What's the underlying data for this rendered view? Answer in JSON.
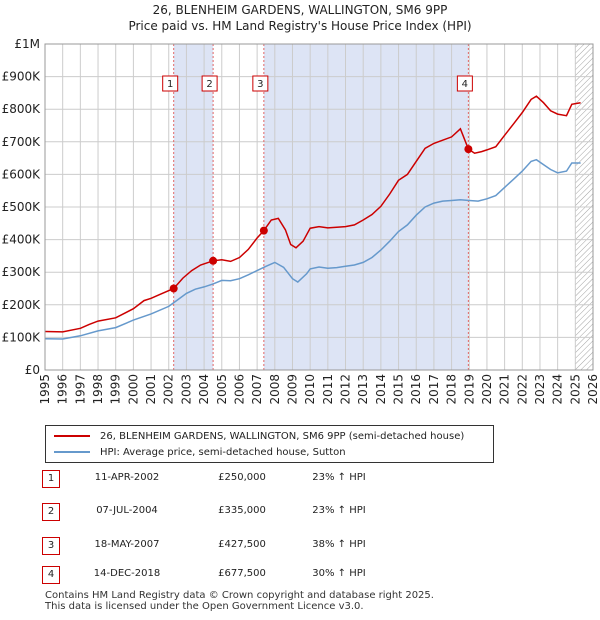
{
  "header": {
    "title": "26, BLENHEIM GARDENS, WALLINGTON, SM6 9PP",
    "subtitle": "Price paid vs. HM Land Registry's House Price Index (HPI)"
  },
  "colors": {
    "price_line": "#cc0000",
    "hpi_line": "#6699cc",
    "shade": "#dde4f5",
    "grid": "#cccccc",
    "hatch": "#999999"
  },
  "chart_data": {
    "type": "line",
    "title": "26, BLENHEIM GARDENS, WALLINGTON, SM6 9PP",
    "subtitle": "Price paid vs. HM Land Registry's House Price Index (HPI)",
    "xlabel": "",
    "ylabel": "",
    "xlim": [
      1995,
      2026
    ],
    "ylim": [
      0,
      1000000
    ],
    "x_ticks": [
      "1995",
      "1996",
      "1997",
      "1998",
      "1999",
      "2000",
      "2001",
      "2002",
      "2003",
      "2004",
      "2005",
      "2006",
      "2007",
      "2008",
      "2009",
      "2010",
      "2011",
      "2012",
      "2013",
      "2014",
      "2015",
      "2016",
      "2017",
      "2018",
      "2019",
      "2020",
      "2021",
      "2022",
      "2023",
      "2024",
      "2025",
      "2026"
    ],
    "y_ticks": [
      {
        "value": 0,
        "label": "£0"
      },
      {
        "value": 100000,
        "label": "£100K"
      },
      {
        "value": 200000,
        "label": "£200K"
      },
      {
        "value": 300000,
        "label": "£300K"
      },
      {
        "value": 400000,
        "label": "£400K"
      },
      {
        "value": 500000,
        "label": "£500K"
      },
      {
        "value": 600000,
        "label": "£600K"
      },
      {
        "value": 700000,
        "label": "£700K"
      },
      {
        "value": 800000,
        "label": "£800K"
      },
      {
        "value": 900000,
        "label": "£900K"
      },
      {
        "value": 1000000,
        "label": "£1M"
      }
    ],
    "grid": true,
    "shaded_ranges": [
      [
        2002.28,
        2004.51
      ],
      [
        2007.38,
        2018.95
      ]
    ],
    "projection_start": 2025.0,
    "series": [
      {
        "name": "26, BLENHEIM GARDENS, WALLINGTON, SM6 9PP (semi-detached house)",
        "color": "#cc0000",
        "points": [
          [
            1995.0,
            118000
          ],
          [
            1996.0,
            117000
          ],
          [
            1997.0,
            128000
          ],
          [
            1997.5,
            140000
          ],
          [
            1998.0,
            150000
          ],
          [
            1999.0,
            160000
          ],
          [
            2000.0,
            188000
          ],
          [
            2000.6,
            213000
          ],
          [
            2001.0,
            220000
          ],
          [
            2001.5,
            232000
          ],
          [
            2002.28,
            250000
          ],
          [
            2002.8,
            282000
          ],
          [
            2003.3,
            305000
          ],
          [
            2003.8,
            322000
          ],
          [
            2004.51,
            335000
          ],
          [
            2005.0,
            338000
          ],
          [
            2005.5,
            333000
          ],
          [
            2006.0,
            345000
          ],
          [
            2006.5,
            370000
          ],
          [
            2007.0,
            405000
          ],
          [
            2007.38,
            427500
          ],
          [
            2007.8,
            460000
          ],
          [
            2008.2,
            465000
          ],
          [
            2008.6,
            430000
          ],
          [
            2008.9,
            385000
          ],
          [
            2009.2,
            375000
          ],
          [
            2009.6,
            395000
          ],
          [
            2010.0,
            435000
          ],
          [
            2010.5,
            440000
          ],
          [
            2011.0,
            436000
          ],
          [
            2011.5,
            438000
          ],
          [
            2012.0,
            440000
          ],
          [
            2012.5,
            445000
          ],
          [
            2013.0,
            460000
          ],
          [
            2013.5,
            477000
          ],
          [
            2014.0,
            502000
          ],
          [
            2014.5,
            540000
          ],
          [
            2015.0,
            582000
          ],
          [
            2015.5,
            600000
          ],
          [
            2016.0,
            640000
          ],
          [
            2016.5,
            680000
          ],
          [
            2017.0,
            695000
          ],
          [
            2017.5,
            705000
          ],
          [
            2018.0,
            715000
          ],
          [
            2018.5,
            740000
          ],
          [
            2018.95,
            677500
          ],
          [
            2019.3,
            665000
          ],
          [
            2019.7,
            670000
          ],
          [
            2020.0,
            675000
          ],
          [
            2020.5,
            685000
          ],
          [
            2021.0,
            720000
          ],
          [
            2021.5,
            755000
          ],
          [
            2022.0,
            790000
          ],
          [
            2022.5,
            830000
          ],
          [
            2022.8,
            840000
          ],
          [
            2023.2,
            820000
          ],
          [
            2023.6,
            795000
          ],
          [
            2024.0,
            785000
          ],
          [
            2024.5,
            780000
          ],
          [
            2024.8,
            815000
          ],
          [
            2025.3,
            820000
          ]
        ]
      },
      {
        "name": "HPI: Average price, semi-detached house, Sutton",
        "color": "#6699cc",
        "points": [
          [
            1995.0,
            96000
          ],
          [
            1996.0,
            95000
          ],
          [
            1997.0,
            105000
          ],
          [
            1998.0,
            120000
          ],
          [
            1999.0,
            130000
          ],
          [
            2000.0,
            153000
          ],
          [
            2001.0,
            172000
          ],
          [
            2002.0,
            195000
          ],
          [
            2002.5,
            215000
          ],
          [
            2003.0,
            235000
          ],
          [
            2003.5,
            248000
          ],
          [
            2004.0,
            255000
          ],
          [
            2004.51,
            264000
          ],
          [
            2005.0,
            275000
          ],
          [
            2005.5,
            274000
          ],
          [
            2006.0,
            280000
          ],
          [
            2006.5,
            292000
          ],
          [
            2007.0,
            305000
          ],
          [
            2007.5,
            318000
          ],
          [
            2008.0,
            330000
          ],
          [
            2008.5,
            315000
          ],
          [
            2009.0,
            280000
          ],
          [
            2009.3,
            270000
          ],
          [
            2009.8,
            295000
          ],
          [
            2010.0,
            310000
          ],
          [
            2010.5,
            316000
          ],
          [
            2011.0,
            312000
          ],
          [
            2011.5,
            314000
          ],
          [
            2012.0,
            318000
          ],
          [
            2012.5,
            322000
          ],
          [
            2013.0,
            330000
          ],
          [
            2013.5,
            345000
          ],
          [
            2014.0,
            368000
          ],
          [
            2014.5,
            395000
          ],
          [
            2015.0,
            425000
          ],
          [
            2015.5,
            445000
          ],
          [
            2016.0,
            475000
          ],
          [
            2016.5,
            500000
          ],
          [
            2017.0,
            512000
          ],
          [
            2017.5,
            518000
          ],
          [
            2018.0,
            520000
          ],
          [
            2018.5,
            522000
          ],
          [
            2019.0,
            520000
          ],
          [
            2019.5,
            518000
          ],
          [
            2020.0,
            525000
          ],
          [
            2020.5,
            535000
          ],
          [
            2021.0,
            560000
          ],
          [
            2021.5,
            585000
          ],
          [
            2022.0,
            610000
          ],
          [
            2022.5,
            640000
          ],
          [
            2022.8,
            645000
          ],
          [
            2023.2,
            630000
          ],
          [
            2023.6,
            615000
          ],
          [
            2024.0,
            605000
          ],
          [
            2024.5,
            610000
          ],
          [
            2024.8,
            635000
          ],
          [
            2025.3,
            635000
          ]
        ]
      }
    ],
    "markers": [
      {
        "label": "1",
        "x": 2002.28,
        "y": 250000
      },
      {
        "label": "2",
        "x": 2004.51,
        "y": 335000
      },
      {
        "label": "3",
        "x": 2007.38,
        "y": 427500
      },
      {
        "label": "4",
        "x": 2018.95,
        "y": 677500
      }
    ]
  },
  "legend": {
    "price_label": "26, BLENHEIM GARDENS, WALLINGTON, SM6 9PP (semi-detached house)",
    "hpi_label": "HPI: Average price, semi-detached house, Sutton"
  },
  "transactions": [
    {
      "num": "1",
      "date": "11-APR-2002",
      "price": "£250,000",
      "hpi": "23% ↑ HPI"
    },
    {
      "num": "2",
      "date": "07-JUL-2004",
      "price": "£335,000",
      "hpi": "23% ↑ HPI"
    },
    {
      "num": "3",
      "date": "18-MAY-2007",
      "price": "£427,500",
      "hpi": "38% ↑ HPI"
    },
    {
      "num": "4",
      "date": "14-DEC-2018",
      "price": "£677,500",
      "hpi": "30% ↑ HPI"
    }
  ],
  "footer": {
    "line1": "Contains HM Land Registry data © Crown copyright and database right 2025.",
    "line2": "This data is licensed under the Open Government Licence v3.0."
  }
}
